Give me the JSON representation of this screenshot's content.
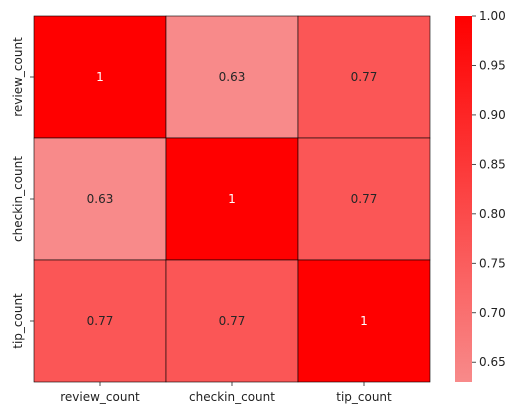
{
  "chart_data": {
    "type": "heatmap",
    "title": "",
    "xlabel": "",
    "ylabel": "",
    "x_categories": [
      "review_count",
      "checkin_count",
      "tip_count"
    ],
    "y_categories": [
      "review_count",
      "checkin_count",
      "tip_count"
    ],
    "values": [
      [
        1,
        0.63,
        0.77
      ],
      [
        0.63,
        1,
        0.77
      ],
      [
        0.77,
        0.77,
        1
      ]
    ],
    "annotations": [
      [
        "1",
        "0.63",
        "0.77"
      ],
      [
        "0.63",
        "1",
        "0.77"
      ],
      [
        "0.77",
        "0.77",
        "1"
      ]
    ],
    "color_range": [
      0.63,
      1.0
    ],
    "colormap": {
      "low_color": "#f88a8a",
      "high_color": "#ff0000"
    },
    "annotation_colors": {
      "on_light": "#262626",
      "on_dark": "#ffffff"
    },
    "cell_border_color": "#000000",
    "colorbar": {
      "ticks": [
        0.65,
        0.7,
        0.75,
        0.8,
        0.85,
        0.9,
        0.95,
        1.0
      ],
      "tick_labels": [
        "0.65",
        "0.70",
        "0.75",
        "0.80",
        "0.85",
        "0.90",
        "0.95",
        "1.00"
      ],
      "placement": "right"
    }
  }
}
